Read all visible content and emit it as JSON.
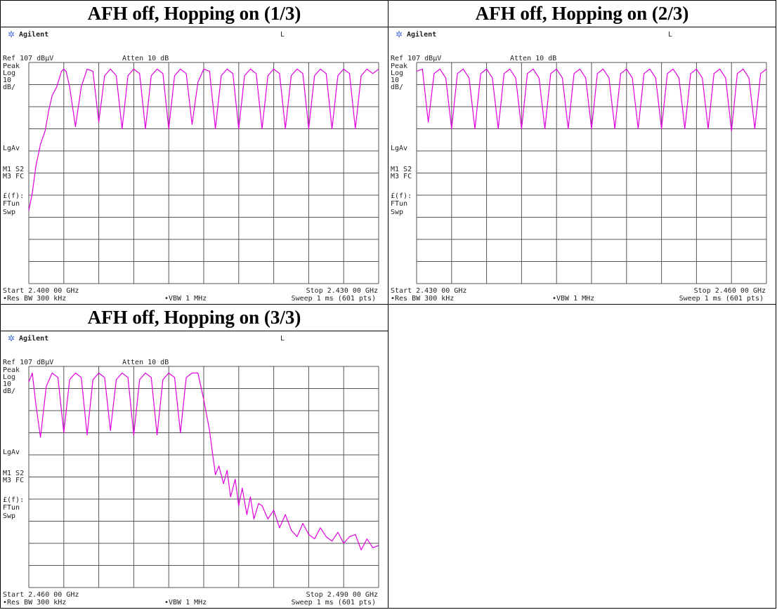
{
  "panels": [
    {
      "title": "AFH off, Hopping on (1/3)",
      "brand": "Agilent",
      "indicator": "L",
      "ref_level": "Ref 107 dBμV",
      "atten": "Atten 10 dB",
      "side_labels": [
        "Peak",
        "Log",
        "10",
        "dB/",
        "LgAv",
        "M1  S2",
        "M3  FC",
        "£(f):",
        "FTun",
        "Swp"
      ],
      "start": "Start 2.400 00 GHz",
      "stop": "Stop 2.430 00 GHz",
      "res_bw": "•Res BW 300 kHz",
      "vbw": "•VBW 1 MHz",
      "sweep": "Sweep 1 ms (601 pts)"
    },
    {
      "title": "AFH off, Hopping on (2/3)",
      "brand": "Agilent",
      "indicator": "L",
      "ref_level": "Ref 107 dBμV",
      "atten": "Atten 10 dB",
      "side_labels": [
        "Peak",
        "Log",
        "10",
        "dB/",
        "LgAv",
        "M1  S2",
        "M3  FC",
        "£(f):",
        "FTun",
        "Swp"
      ],
      "start": "Start 2.430 00 GHz",
      "stop": "Stop 2.460 00 GHz",
      "res_bw": "•Res BW 300 kHz",
      "vbw": "•VBW 1 MHz",
      "sweep": "Sweep 1 ms (601 pts)"
    },
    {
      "title": "AFH off, Hopping on (3/3)",
      "brand": "Agilent",
      "indicator": "L",
      "ref_level": "Ref 107 dBμV",
      "atten": "Atten 10 dB",
      "side_labels": [
        "Peak",
        "Log",
        "10",
        "dB/",
        "LgAv",
        "M1  S2",
        "M3  FC",
        "£(f):",
        "FTun",
        "Swp"
      ],
      "start": "Start 2.460 00 GHz",
      "stop": "Stop 2.490 00 GHz",
      "res_bw": "•Res BW 300 kHz",
      "vbw": "•VBW 1 MHz",
      "sweep": "Sweep 1 ms (601 pts)"
    }
  ],
  "colors": {
    "trace": "#e000e0",
    "grid": "#555555",
    "text": "#222222",
    "brand_star": "#3a6ad4"
  },
  "chart_data": [
    {
      "type": "line",
      "title": "AFH off, Hopping on (1/3)",
      "xlabel": "",
      "ylabel": "",
      "xlim": [
        2.4,
        2.43
      ],
      "ylim": [
        7,
        107
      ],
      "grid": true,
      "series": [
        {
          "x": [
            2.4,
            2.4003,
            2.4006,
            2.401,
            2.4014,
            2.4017,
            2.402,
            2.4024,
            2.4028,
            2.403,
            2.4032,
            2.4035,
            2.404,
            2.4045,
            2.405,
            2.4055,
            2.406,
            2.4065,
            2.407,
            2.4075,
            2.408,
            2.4085,
            2.409,
            2.4095,
            2.41,
            2.4105,
            2.411,
            2.4115,
            2.412,
            2.4125,
            2.413,
            2.4135,
            2.414,
            2.4145,
            2.415,
            2.4155,
            2.416,
            2.4165,
            2.417,
            2.4175,
            2.418,
            2.4185,
            2.419,
            2.4195,
            2.42,
            2.4205,
            2.421,
            2.4215,
            2.422,
            2.4225,
            2.423,
            2.4235,
            2.424,
            2.4245,
            2.425,
            2.4255,
            2.426,
            2.4265,
            2.427,
            2.4275,
            2.428,
            2.4285,
            2.429,
            2.4295,
            2.43
          ],
          "y": [
            40,
            48,
            60,
            70,
            76,
            85,
            92,
            96,
            103,
            104,
            103,
            96,
            78,
            96,
            104,
            103,
            80,
            101,
            104,
            101,
            77,
            101,
            104,
            102,
            77,
            101,
            104,
            102,
            77,
            101,
            104,
            102,
            79,
            98,
            104,
            103,
            77,
            101,
            104,
            102,
            77,
            101,
            104,
            102,
            77,
            101,
            104,
            102,
            77,
            101,
            104,
            102,
            77,
            101,
            104,
            102,
            77,
            101,
            104,
            102,
            77,
            101,
            104,
            102,
            104
          ]
        }
      ]
    },
    {
      "type": "line",
      "title": "AFH off, Hopping on (2/3)",
      "xlabel": "",
      "ylabel": "",
      "xlim": [
        2.43,
        2.46
      ],
      "ylim": [
        7,
        107
      ],
      "grid": true,
      "series": [
        {
          "x": [
            2.43,
            2.4305,
            2.431,
            2.4315,
            2.432,
            2.4325,
            2.433,
            2.4335,
            2.434,
            2.4345,
            2.435,
            2.4355,
            2.436,
            2.4365,
            2.437,
            2.4375,
            2.438,
            2.4385,
            2.439,
            2.4395,
            2.44,
            2.4405,
            2.441,
            2.4415,
            2.442,
            2.4425,
            2.443,
            2.4435,
            2.444,
            2.4445,
            2.445,
            2.4455,
            2.446,
            2.4465,
            2.447,
            2.4475,
            2.448,
            2.4485,
            2.449,
            2.4495,
            2.45,
            2.4505,
            2.451,
            2.4515,
            2.452,
            2.4525,
            2.453,
            2.4535,
            2.454,
            2.4545,
            2.455,
            2.4555,
            2.456,
            2.4565,
            2.457,
            2.4575,
            2.458,
            2.4585,
            2.459,
            2.4595,
            2.46
          ],
          "y": [
            103,
            104,
            80,
            102,
            104,
            100,
            77,
            102,
            104,
            100,
            77,
            102,
            104,
            100,
            77,
            102,
            104,
            100,
            77,
            102,
            104,
            100,
            77,
            102,
            104,
            100,
            77,
            102,
            104,
            100,
            77,
            102,
            104,
            100,
            77,
            102,
            104,
            100,
            77,
            102,
            104,
            100,
            77,
            102,
            104,
            100,
            77,
            102,
            104,
            100,
            77,
            102,
            104,
            100,
            76,
            102,
            104,
            100,
            77,
            102,
            104
          ]
        }
      ]
    },
    {
      "type": "line",
      "title": "AFH off, Hopping on (3/3)",
      "xlabel": "",
      "ylabel": "",
      "xlim": [
        2.46,
        2.49
      ],
      "ylim": [
        7,
        107
      ],
      "grid": true,
      "series": [
        {
          "x": [
            2.46,
            2.4603,
            2.4606,
            2.461,
            2.4615,
            2.462,
            2.4625,
            2.463,
            2.4635,
            2.464,
            2.4645,
            2.465,
            2.4655,
            2.466,
            2.4665,
            2.467,
            2.4675,
            2.468,
            2.4685,
            2.469,
            2.4695,
            2.47,
            2.4705,
            2.471,
            2.4715,
            2.472,
            2.4725,
            2.473,
            2.4735,
            2.474,
            2.4745,
            2.475,
            2.4755,
            2.4757,
            2.476,
            2.4763,
            2.4767,
            2.477,
            2.4773,
            2.4777,
            2.478,
            2.4783,
            2.4787,
            2.479,
            2.4793,
            2.4797,
            2.48,
            2.4805,
            2.481,
            2.4815,
            2.482,
            2.4825,
            2.483,
            2.4835,
            2.484,
            2.4845,
            2.485,
            2.4855,
            2.486,
            2.4865,
            2.487,
            2.4875,
            2.488,
            2.4885,
            2.489,
            2.4895,
            2.49
          ],
          "y": [
            100,
            104,
            90,
            75,
            98,
            104,
            102,
            77,
            101,
            104,
            102,
            76,
            101,
            104,
            102,
            78,
            101,
            104,
            102,
            76,
            101,
            104,
            102,
            76,
            101,
            104,
            102,
            77,
            102,
            104,
            104,
            92,
            78,
            70,
            58,
            62,
            54,
            60,
            48,
            56,
            44,
            52,
            40,
            48,
            38,
            45,
            44,
            38,
            42,
            34,
            40,
            33,
            30,
            36,
            31,
            29,
            34,
            30,
            28,
            32,
            27,
            30,
            31,
            24,
            29,
            25,
            26
          ]
        }
      ]
    }
  ]
}
